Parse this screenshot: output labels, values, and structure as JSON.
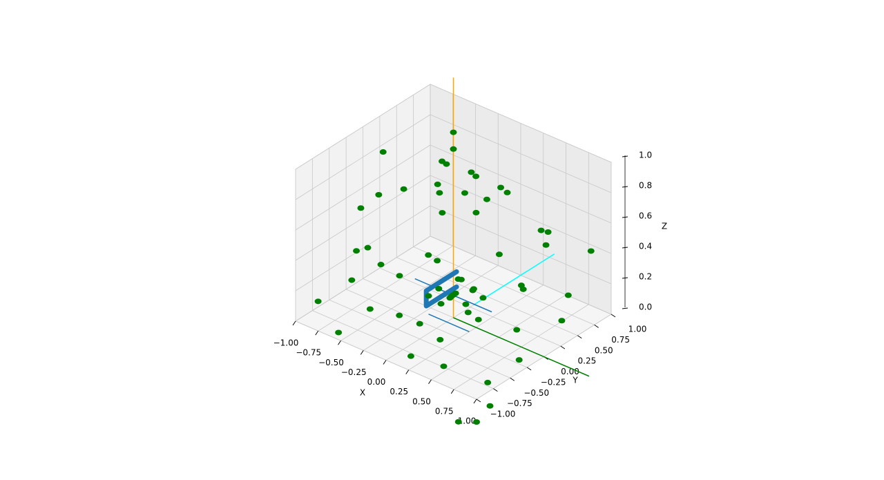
{
  "chart_data": {
    "type": "scatter3d",
    "xlabel": "X",
    "ylabel": "Y",
    "zlabel": "Z",
    "xlim": [
      -1,
      1
    ],
    "ylim": [
      -1,
      1
    ],
    "zlim": [
      0,
      1
    ],
    "xticks": [
      {
        "value": -1,
        "label": "−1.00"
      },
      {
        "value": -0.75,
        "label": "−0.75"
      },
      {
        "value": -0.5,
        "label": "−0.50"
      },
      {
        "value": -0.25,
        "label": "−0.25"
      },
      {
        "value": 0,
        "label": "0.00"
      },
      {
        "value": 0.25,
        "label": "0.25"
      },
      {
        "value": 0.5,
        "label": "0.50"
      },
      {
        "value": 0.75,
        "label": "0.75"
      },
      {
        "value": 1,
        "label": "1.00"
      }
    ],
    "yticks": [
      {
        "value": -1,
        "label": "−1.00"
      },
      {
        "value": -0.75,
        "label": "−0.75"
      },
      {
        "value": -0.5,
        "label": "−0.50"
      },
      {
        "value": -0.25,
        "label": "−0.25"
      },
      {
        "value": 0,
        "label": "0.00"
      },
      {
        "value": 0.25,
        "label": "0.25"
      },
      {
        "value": 0.5,
        "label": "0.50"
      },
      {
        "value": 0.75,
        "label": "0.75"
      },
      {
        "value": 1,
        "label": "1.00"
      }
    ],
    "zticks": [
      {
        "value": 0,
        "label": "0.0"
      },
      {
        "value": 0.2,
        "label": "0.2"
      },
      {
        "value": 0.4,
        "label": "0.4"
      },
      {
        "value": 0.6,
        "label": "0.6"
      },
      {
        "value": 0.8,
        "label": "0.8"
      },
      {
        "value": 1,
        "label": "1.0"
      }
    ],
    "grid": true,
    "lines": [
      {
        "color": "#ffa500",
        "linewidth": 1.5,
        "x": [
          0,
          0
        ],
        "y": [
          0,
          0
        ],
        "z": [
          0,
          1.58
        ]
      },
      {
        "color": "#00ffff",
        "linewidth": 1.5,
        "x": [
          0,
          0
        ],
        "y": [
          0.3,
          1.5
        ],
        "z": [
          0,
          0
        ]
      },
      {
        "color": "#008000",
        "linewidth": 1.5,
        "x": [
          0,
          1.5
        ],
        "y": [
          0,
          0
        ],
        "z": [
          0,
          0
        ]
      },
      {
        "color": "#1f77b4",
        "linewidth": 1.5,
        "x": [
          -0.5,
          0.35
        ],
        "y": [
          0.1,
          0.1
        ],
        "z": [
          0.1,
          0.1
        ]
      },
      {
        "color": "#1f77b4",
        "linewidth": 1.5,
        "x": [
          -0.2,
          0.25
        ],
        "y": [
          -0.1,
          -0.1
        ],
        "z": [
          0,
          0
        ]
      },
      {
        "color": "#1f77b4",
        "linewidth": 7,
        "x": [
          -0.3,
          -0.3,
          -0.3,
          -0.3
        ],
        "y": [
          0.45,
          0,
          0,
          0.45
        ],
        "z": [
          0.1,
          0.1,
          0,
          0
        ]
      }
    ],
    "series": [
      {
        "color": "#008000",
        "x": [
          0,
          0,
          -0.2,
          0.1,
          -0.1,
          0.2,
          -0.3,
          0.3,
          -0.4,
          0.4,
          0.1,
          -0.1,
          -0.8,
          -0.9,
          0.8,
          0.9,
          -0.5,
          0.5,
          -0.6,
          0.6,
          0,
          0,
          -0.7,
          0.7,
          -0.3,
          0.3,
          -1,
          1,
          0,
          0.1,
          -0.05,
          0.05,
          -0.1,
          0.15,
          -0.15,
          0.08,
          0.2,
          -0.2,
          0.05,
          -0.05,
          -0.9,
          -0.6,
          0.2,
          0.6,
          0.9,
          0.95,
          0.9,
          0.6,
          -0.2,
          -0.7,
          -0.95,
          -0.9,
          -0.4,
          0.3,
          0.5,
          -0.5,
          0.4,
          -0.3,
          0.7,
          0,
          1,
          0.8,
          1
        ],
        "y": [
          0,
          0,
          0.1,
          0.2,
          -0.1,
          -0.1,
          0.3,
          0.3,
          -0.2,
          -0.2,
          -0.3,
          0.4,
          -0.3,
          0.1,
          0.3,
          -0.2,
          -0.6,
          -0.6,
          0.6,
          0.6,
          -0.8,
          0.8,
          -0.5,
          -0.5,
          0.9,
          0.9,
          0.3,
          0.7,
          0,
          0.05,
          0.1,
          -0.1,
          -0.05,
          0.1,
          0.15,
          0.18,
          -0.05,
          -0.1,
          0.05,
          -0.15,
          -0.8,
          -0.9,
          -0.9,
          -0.95,
          -0.7,
          -0.3,
          0.4,
          0.9,
          0.95,
          0.7,
          0.2,
          -0.3,
          -0.7,
          -0.6,
          -0.3,
          0.3,
          0.5,
          -0.4,
          0,
          -0.5,
          -1,
          -1,
          -0.8
        ],
        "z": [
          1.22,
          1.11,
          0.95,
          0.9,
          0.88,
          0.9,
          0.85,
          0.85,
          0.8,
          0.85,
          0.8,
          0.82,
          0.6,
          0.55,
          0.6,
          0.5,
          0.5,
          0.55,
          0.5,
          0.55,
          0.5,
          0.6,
          0.4,
          0.45,
          0.45,
          0.4,
          0.75,
          0.5,
          0.15,
          0.1,
          0.12,
          0.18,
          0.08,
          0.2,
          0.05,
          0.15,
          0.1,
          0.12,
          0.25,
          0.22,
          0.1,
          0,
          0.05,
          0.1,
          0,
          0.05,
          0.1,
          0.05,
          0.1,
          0,
          0.05,
          0.1,
          0.15,
          0.1,
          0.2,
          0.2,
          0.15,
          0.05,
          0.1,
          0.1,
          -0.15,
          -0.2,
          -0.1
        ]
      }
    ]
  }
}
